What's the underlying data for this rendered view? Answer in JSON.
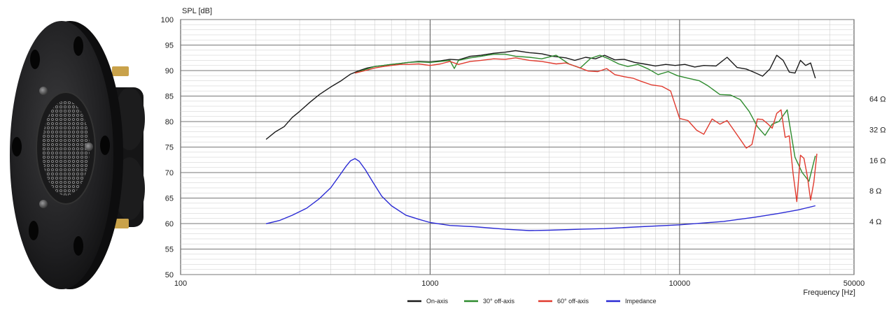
{
  "product_photo": {
    "alt": ""
  },
  "chart_data": {
    "type": "line",
    "title": "",
    "ylabel": "SPL [dB]",
    "xlabel": "Frequency [Hz]",
    "xscale": "log",
    "xlim": [
      100,
      50000
    ],
    "ylim": [
      50,
      100
    ],
    "grid": true,
    "x_tick_labels": [
      "100",
      "1000",
      "10000",
      "50000"
    ],
    "x_tick_values": [
      100,
      1000,
      10000,
      50000
    ],
    "y_ticks": [
      50,
      55,
      60,
      65,
      70,
      75,
      80,
      85,
      90,
      95,
      100
    ],
    "right_axis": {
      "label": "",
      "scale": "log",
      "ticks": [
        {
          "value": 4,
          "label": "4 Ω"
        },
        {
          "value": 8,
          "label": "8 Ω"
        },
        {
          "value": 16,
          "label": "16 Ω"
        },
        {
          "value": 32,
          "label": "32 Ω"
        },
        {
          "value": 64,
          "label": "64 Ω"
        }
      ],
      "ohm_at_spl_50": 1.2,
      "ohm_doublings_per_6_dB": 1
    },
    "legend_position": "bottom-center",
    "series": [
      {
        "name": "On-axis",
        "color": "#1a1a1a",
        "x": [
          220,
          240,
          260,
          280,
          300,
          330,
          360,
          400,
          440,
          480,
          520,
          560,
          600,
          650,
          700,
          760,
          820,
          900,
          1000,
          1100,
          1200,
          1300,
          1450,
          1600,
          1800,
          2000,
          2200,
          2500,
          2800,
          3100,
          3500,
          3800,
          4200,
          4600,
          5000,
          5500,
          6000,
          6600,
          7200,
          8000,
          8800,
          9600,
          10500,
          11500,
          12500,
          14000,
          15500,
          17000,
          18500,
          20000,
          21500,
          23000,
          24500,
          26000,
          27500,
          29000,
          30500,
          32000,
          33500,
          35000
        ],
        "y": [
          76.5,
          78.0,
          79.0,
          80.8,
          82.0,
          83.8,
          85.3,
          86.8,
          88.0,
          89.3,
          90.0,
          90.5,
          90.8,
          91.0,
          91.2,
          91.4,
          91.6,
          91.8,
          91.7,
          91.9,
          92.2,
          92.1,
          92.8,
          93.0,
          93.4,
          93.6,
          93.9,
          93.5,
          93.3,
          92.8,
          92.5,
          92.0,
          92.6,
          92.3,
          93.0,
          92.1,
          92.2,
          91.6,
          91.3,
          90.9,
          91.2,
          91.0,
          91.2,
          90.7,
          91.0,
          90.9,
          92.6,
          90.6,
          90.3,
          89.6,
          88.9,
          90.3,
          93.0,
          92.0,
          89.7,
          89.5,
          92.0,
          91.0,
          91.5,
          88.5
        ]
      },
      {
        "name": "30° off-axis",
        "color": "#2e8b2e",
        "x": [
          500,
          550,
          600,
          650,
          700,
          760,
          820,
          900,
          1000,
          1100,
          1200,
          1250,
          1300,
          1450,
          1600,
          1800,
          2000,
          2200,
          2500,
          2800,
          3200,
          3600,
          4000,
          4400,
          4800,
          5200,
          5700,
          6200,
          6800,
          7500,
          8200,
          9000,
          9800,
          10800,
          12000,
          13000,
          14500,
          16000,
          17500,
          19000,
          20500,
          22000,
          23500,
          25000,
          27000,
          29000,
          31000,
          33000,
          35000
        ],
        "y": [
          89.5,
          90.2,
          90.8,
          91.0,
          91.2,
          91.4,
          91.6,
          91.7,
          91.6,
          91.8,
          92.0,
          90.4,
          92.0,
          92.5,
          92.8,
          93.2,
          93.2,
          92.8,
          92.6,
          92.3,
          93.0,
          91.3,
          90.5,
          92.4,
          93.0,
          92.3,
          91.3,
          90.8,
          91.2,
          90.3,
          89.2,
          89.8,
          89.0,
          88.5,
          88.0,
          87.0,
          85.3,
          85.2,
          84.3,
          82.0,
          79.0,
          77.3,
          79.5,
          80.0,
          82.3,
          73.0,
          70.0,
          68.3,
          73.3
        ]
      },
      {
        "name": "60° off-axis",
        "color": "#e03a2e",
        "x": [
          500,
          550,
          600,
          650,
          700,
          760,
          820,
          900,
          1000,
          1100,
          1200,
          1300,
          1450,
          1600,
          1800,
          2000,
          2200,
          2500,
          2800,
          3200,
          3500,
          3900,
          4300,
          4700,
          5100,
          5500,
          6000,
          6500,
          7000,
          7700,
          8500,
          9200,
          10000,
          10800,
          11700,
          12500,
          13500,
          14500,
          15500,
          16500,
          17500,
          18500,
          19500,
          20500,
          21500,
          22500,
          23500,
          24500,
          25500,
          26500,
          27500,
          28500,
          29500,
          30500,
          31500,
          32500,
          33500,
          34500,
          35500
        ],
        "y": [
          89.5,
          90.0,
          90.5,
          90.8,
          91.0,
          91.2,
          91.2,
          91.3,
          91.0,
          91.3,
          91.8,
          91.2,
          91.8,
          92.0,
          92.3,
          92.2,
          92.5,
          92.0,
          91.8,
          91.3,
          91.5,
          90.7,
          89.9,
          89.8,
          90.4,
          89.2,
          88.8,
          88.5,
          87.9,
          87.2,
          86.9,
          86.0,
          80.6,
          80.2,
          78.3,
          77.5,
          80.5,
          79.5,
          80.2,
          78.3,
          76.5,
          74.8,
          75.5,
          80.5,
          80.4,
          79.6,
          78.7,
          81.6,
          82.3,
          76.9,
          77.2,
          69.8,
          64.3,
          73.4,
          72.8,
          69.3,
          64.6,
          68.1,
          73.7
        ]
      },
      {
        "name": "Impedance",
        "color": "#2a2ad4",
        "axis": "right",
        "x": [
          220,
          250,
          280,
          320,
          360,
          400,
          430,
          460,
          480,
          500,
          520,
          550,
          590,
          640,
          700,
          800,
          900,
          1000,
          1200,
          1500,
          2000,
          2500,
          3000,
          4000,
          5000,
          7000,
          10000,
          15000,
          20000,
          25000,
          30000,
          35000
        ],
        "y": [
          3.8,
          4.1,
          4.6,
          5.4,
          6.7,
          8.6,
          11.0,
          13.9,
          15.8,
          16.6,
          15.6,
          12.9,
          9.7,
          7.1,
          5.7,
          4.6,
          4.2,
          3.9,
          3.65,
          3.55,
          3.35,
          3.25,
          3.28,
          3.35,
          3.4,
          3.55,
          3.7,
          4.0,
          4.4,
          4.8,
          5.2,
          5.7
        ]
      }
    ]
  }
}
